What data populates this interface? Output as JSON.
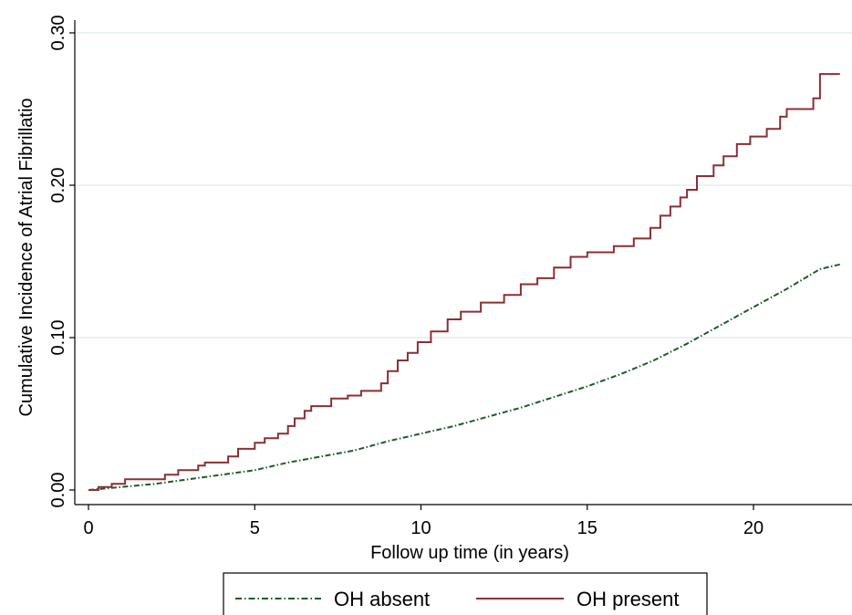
{
  "chart_data": {
    "type": "line",
    "ylabel": "Cumulative Incidence of Atrial Fibrillatio",
    "xlabel": "Follow up time (in years)",
    "xlim": [
      0,
      22.6
    ],
    "ylim": [
      0,
      0.3
    ],
    "x_ticks": [
      0,
      5,
      10,
      15,
      20
    ],
    "x_tick_labels": [
      "0",
      "5",
      "10",
      "15",
      "20"
    ],
    "y_ticks": [
      0,
      0.1,
      0.2,
      0.3
    ],
    "y_tick_labels": [
      "0.00",
      "0.10",
      "0.20",
      "0.30"
    ],
    "grid": "horizontal",
    "legend_position": "bottom",
    "series": [
      {
        "name": "OH absent",
        "color": "#1d5c2a",
        "style": "dash-dot",
        "step": false,
        "points": [
          [
            0,
            0
          ],
          [
            1,
            0.002
          ],
          [
            2,
            0.004
          ],
          [
            3,
            0.007
          ],
          [
            4,
            0.01
          ],
          [
            5,
            0.013
          ],
          [
            6,
            0.018
          ],
          [
            7,
            0.022
          ],
          [
            8,
            0.026
          ],
          [
            9,
            0.032
          ],
          [
            10,
            0.037
          ],
          [
            11,
            0.042
          ],
          [
            12,
            0.048
          ],
          [
            13,
            0.054
          ],
          [
            14,
            0.061
          ],
          [
            15,
            0.068
          ],
          [
            16,
            0.076
          ],
          [
            17,
            0.085
          ],
          [
            18,
            0.096
          ],
          [
            19,
            0.108
          ],
          [
            20,
            0.12
          ],
          [
            21,
            0.132
          ],
          [
            22,
            0.145
          ],
          [
            22.6,
            0.148
          ]
        ]
      },
      {
        "name": "OH present",
        "color": "#8b2f33",
        "style": "solid",
        "step": true,
        "points": [
          [
            0,
            0
          ],
          [
            0.3,
            0.002
          ],
          [
            0.7,
            0.004
          ],
          [
            1.1,
            0.007
          ],
          [
            2.3,
            0.01
          ],
          [
            2.7,
            0.013
          ],
          [
            3.3,
            0.016
          ],
          [
            3.5,
            0.018
          ],
          [
            4.2,
            0.022
          ],
          [
            4.5,
            0.027
          ],
          [
            5.0,
            0.031
          ],
          [
            5.3,
            0.034
          ],
          [
            5.7,
            0.037
          ],
          [
            6.0,
            0.042
          ],
          [
            6.2,
            0.047
          ],
          [
            6.5,
            0.052
          ],
          [
            6.7,
            0.055
          ],
          [
            7.3,
            0.06
          ],
          [
            7.8,
            0.062
          ],
          [
            8.2,
            0.065
          ],
          [
            8.8,
            0.07
          ],
          [
            9.0,
            0.078
          ],
          [
            9.3,
            0.085
          ],
          [
            9.6,
            0.09
          ],
          [
            9.9,
            0.097
          ],
          [
            10.3,
            0.104
          ],
          [
            10.8,
            0.112
          ],
          [
            11.2,
            0.117
          ],
          [
            11.8,
            0.123
          ],
          [
            12.5,
            0.128
          ],
          [
            13.0,
            0.135
          ],
          [
            13.5,
            0.139
          ],
          [
            14.0,
            0.146
          ],
          [
            14.5,
            0.153
          ],
          [
            15.0,
            0.156
          ],
          [
            15.8,
            0.16
          ],
          [
            16.4,
            0.165
          ],
          [
            16.9,
            0.172
          ],
          [
            17.2,
            0.18
          ],
          [
            17.5,
            0.186
          ],
          [
            17.8,
            0.192
          ],
          [
            18.0,
            0.197
          ],
          [
            18.3,
            0.206
          ],
          [
            18.8,
            0.213
          ],
          [
            19.1,
            0.219
          ],
          [
            19.5,
            0.227
          ],
          [
            19.9,
            0.232
          ],
          [
            20.4,
            0.237
          ],
          [
            20.8,
            0.245
          ],
          [
            21.0,
            0.25
          ],
          [
            21.8,
            0.257
          ],
          [
            22.0,
            0.273
          ],
          [
            22.6,
            0.273
          ]
        ]
      }
    ]
  }
}
